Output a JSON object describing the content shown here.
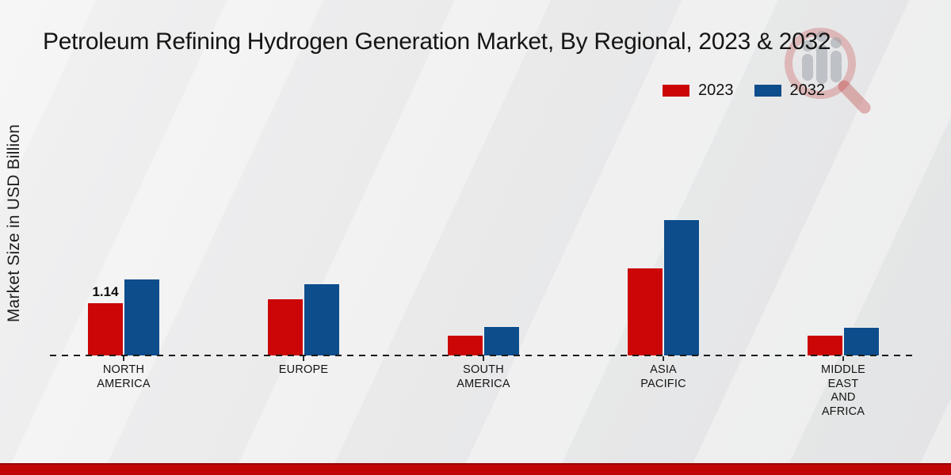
{
  "title": "Petroleum Refining Hydrogen Generation Market, By Regional, 2023 & 2032",
  "y_axis_label": "Market Size in USD Billion",
  "legend": [
    {
      "label": "2023",
      "color": "#cc0606"
    },
    {
      "label": "2032",
      "color": "#0e4d8c"
    }
  ],
  "colors": {
    "series_2023": "#cc0606",
    "series_2032": "#0e4d8c",
    "footer_bar": "#c10505",
    "baseline": "#1b1b1b"
  },
  "watermark_icon": "magnifier-bar-chart-watermark",
  "chart_data": {
    "type": "bar",
    "categories": [
      "NORTH\nAMERICA",
      "EUROPE",
      "SOUTH\nAMERICA",
      "ASIA\nPACIFIC",
      "MIDDLE\nEAST\nAND\nAFRICA"
    ],
    "series": [
      {
        "name": "2023",
        "color": "#cc0606",
        "values": [
          1.14,
          1.22,
          0.45,
          1.88,
          0.45
        ]
      },
      {
        "name": "2032",
        "color": "#0e4d8c",
        "values": [
          1.64,
          1.54,
          0.64,
          2.9,
          0.62
        ]
      }
    ],
    "data_labels": [
      {
        "series_index": 0,
        "category_index": 0,
        "text": "1.14"
      }
    ],
    "title": "Petroleum Refining Hydrogen Generation Market, By Regional, 2023 & 2032",
    "xlabel": "",
    "ylabel": "Market Size in USD Billion",
    "ylim": [
      0,
      3.2
    ],
    "grid": false,
    "legend_position": "top-right",
    "baseline_style": "dashed"
  }
}
